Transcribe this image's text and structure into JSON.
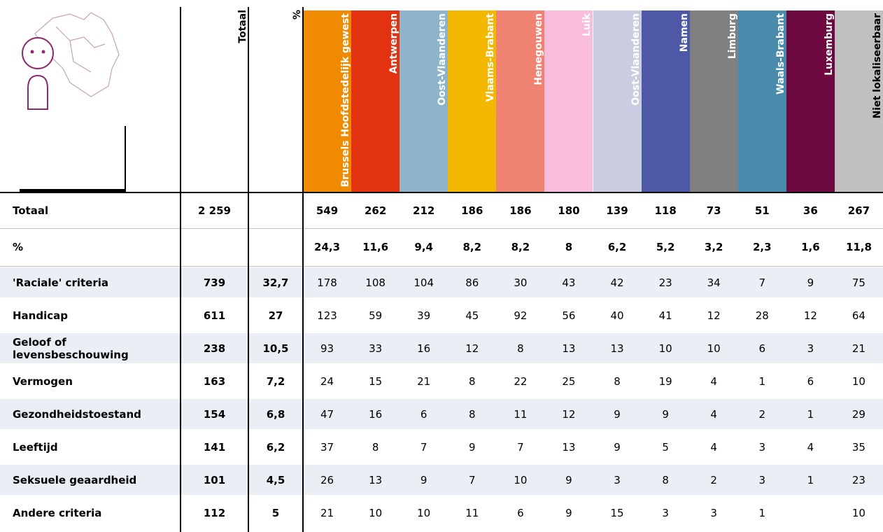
{
  "table": {
    "columns": [
      {
        "label": "Totaal",
        "color": "#ffffff",
        "text_color": "#000000"
      },
      {
        "label": "%",
        "color": "#ffffff",
        "text_color": "#000000"
      },
      {
        "label": "Brussels Hoofdstedelijk gewest",
        "color": "#f08a00",
        "text_color": "#ffffff"
      },
      {
        "label": "Antwerpen",
        "color": "#e2320f",
        "text_color": "#ffffff"
      },
      {
        "label": "Oost-Vlaanderen",
        "color": "#8db4c9",
        "text_color": "#ffffff"
      },
      {
        "label": "Vlaams-Brabant",
        "color": "#f5b800",
        "text_color": "#ffffff"
      },
      {
        "label": "Henegouwen",
        "color": "#f08272",
        "text_color": "#ffffff"
      },
      {
        "label": "Luik",
        "color": "#f8bcdc",
        "text_color": "#ffffff"
      },
      {
        "label": "Oost-Vlaanderen",
        "color": "#cacde2",
        "text_color": "#ffffff"
      },
      {
        "label": "Namen",
        "color": "#4d58a6",
        "text_color": "#ffffff"
      },
      {
        "label": "Limburg",
        "color": "#808080",
        "text_color": "#ffffff"
      },
      {
        "label": "Waals-Brabant",
        "color": "#4a8aab",
        "text_color": "#ffffff"
      },
      {
        "label": "Luxemburg",
        "color": "#6e0840",
        "text_color": "#ffffff"
      },
      {
        "label": "Niet lokaliseerbaar",
        "color": "#c0c0c0",
        "text_color": "#000000"
      }
    ],
    "rows": [
      {
        "label": "Totaal",
        "cells": [
          "2 259",
          null,
          "549",
          "262",
          "212",
          "186",
          "186",
          "180",
          "139",
          "118",
          "73",
          "51",
          "36",
          "267"
        ]
      },
      {
        "label": "%",
        "cells": [
          null,
          null,
          "24,3",
          "11,6",
          "9,4",
          "8,2",
          "8,2",
          "8",
          "6,2",
          "5,2",
          "3,2",
          "2,3",
          "1,6",
          "11,8"
        ]
      },
      {
        "label": "'Raciale' criteria",
        "cells": [
          "739",
          "32,7",
          "178",
          "108",
          "104",
          "86",
          "30",
          "43",
          "42",
          "23",
          "34",
          "7",
          "9",
          "75"
        ]
      },
      {
        "label": "Handicap",
        "cells": [
          "611",
          "27",
          "123",
          "59",
          "39",
          "45",
          "92",
          "56",
          "40",
          "41",
          "12",
          "28",
          "12",
          "64"
        ]
      },
      {
        "label": "Geloof of levensbeschouwing",
        "cells": [
          "238",
          "10,5",
          "93",
          "33",
          "16",
          "12",
          "8",
          "13",
          "13",
          "10",
          "10",
          "6",
          "3",
          "21"
        ]
      },
      {
        "label": "Vermogen",
        "cells": [
          "163",
          "7,2",
          "24",
          "15",
          "21",
          "8",
          "22",
          "25",
          "8",
          "19",
          "4",
          "1",
          "6",
          "10"
        ]
      },
      {
        "label": "Gezondheidstoestand",
        "cells": [
          "154",
          "6,8",
          "47",
          "16",
          "6",
          "8",
          "11",
          "12",
          "9",
          "9",
          "4",
          "2",
          "1",
          "29"
        ]
      },
      {
        "label": "Leeftijd",
        "cells": [
          "141",
          "6,2",
          "37",
          "8",
          "7",
          "9",
          "7",
          "13",
          "9",
          "5",
          "4",
          "3",
          "4",
          "35"
        ]
      },
      {
        "label": "Seksuele geaardheid",
        "cells": [
          "101",
          "4,5",
          "26",
          "13",
          "9",
          "7",
          "10",
          "9",
          "3",
          "8",
          "2",
          "3",
          "1",
          "23"
        ]
      },
      {
        "label": "Andere criteria",
        "cells": [
          "112",
          "5",
          "21",
          "10",
          "10",
          "11",
          "6",
          "9",
          "15",
          "3",
          "3",
          "1",
          null,
          "10"
        ]
      }
    ]
  }
}
